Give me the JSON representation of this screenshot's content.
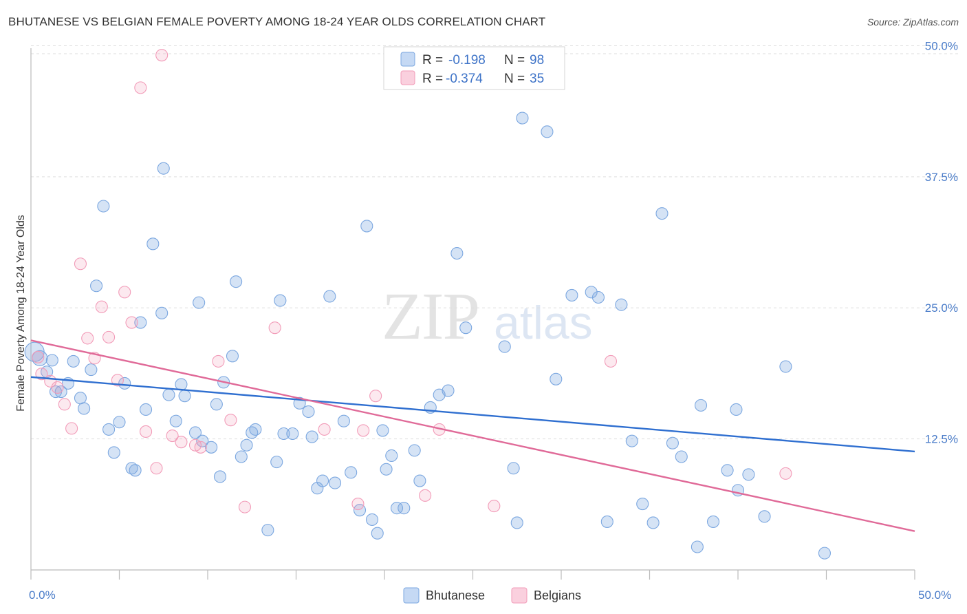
{
  "title": "BHUTANESE VS BELGIAN FEMALE POVERTY AMONG 18-24 YEAR OLDS CORRELATION CHART",
  "source": "Source: ZipAtlas.com",
  "watermark": {
    "zip": "ZIP",
    "atlas": "atlas"
  },
  "legend_box": [
    {
      "r_label": "R =",
      "r_value": "-0.198",
      "n_label": "N =",
      "n_value": "98"
    },
    {
      "r_label": "R =",
      "r_value": "-0.374",
      "n_label": "N =",
      "n_value": "35"
    }
  ],
  "bottom_legend": [
    "Bhutanese",
    "Belgians"
  ],
  "chart_data": {
    "type": "scatter",
    "title": "BHUTANESE VS BELGIAN FEMALE POVERTY AMONG 18-24 YEAR OLDS CORRELATION CHART",
    "xlabel": "",
    "ylabel": "Female Poverty Among 18-24 Year Olds",
    "xlim": [
      0,
      50
    ],
    "ylim": [
      0,
      52
    ],
    "x_tick_labels": [
      "0.0%",
      "50.0%"
    ],
    "y_ticks": [
      12.5,
      25.0,
      37.5,
      50.0
    ],
    "y_tick_labels": [
      "12.5%",
      "25.0%",
      "37.5%",
      "50.0%"
    ],
    "grid": true,
    "legend_position": "top-center",
    "colors": {
      "Bhutanese": "#7ba7e0",
      "Belgians": "#f29bb8",
      "Bhutanese_line": "#2f6fd0",
      "Belgians_line": "#e06a98"
    },
    "series": [
      {
        "name": "Bhutanese",
        "r": -0.198,
        "n": 98,
        "trend": {
          "x": [
            0,
            50
          ],
          "y": [
            18.4,
            11.3
          ]
        },
        "points": [
          [
            0.2,
            20.8
          ],
          [
            0.5,
            20.2
          ],
          [
            0.9,
            18.9
          ],
          [
            1.2,
            20.0
          ],
          [
            1.4,
            17.0
          ],
          [
            1.7,
            17.0
          ],
          [
            2.1,
            17.8
          ],
          [
            2.4,
            19.9
          ],
          [
            2.8,
            16.4
          ],
          [
            3.0,
            15.4
          ],
          [
            3.4,
            19.1
          ],
          [
            3.7,
            27.1
          ],
          [
            4.1,
            34.7
          ],
          [
            4.4,
            13.4
          ],
          [
            4.7,
            11.2
          ],
          [
            5.0,
            14.1
          ],
          [
            5.3,
            17.8
          ],
          [
            5.7,
            9.7
          ],
          [
            5.9,
            9.5
          ],
          [
            6.2,
            23.6
          ],
          [
            6.5,
            15.3
          ],
          [
            6.9,
            31.1
          ],
          [
            7.4,
            24.5
          ],
          [
            7.5,
            38.3
          ],
          [
            7.8,
            16.7
          ],
          [
            8.2,
            14.2
          ],
          [
            8.5,
            17.7
          ],
          [
            8.7,
            16.6
          ],
          [
            9.3,
            13.1
          ],
          [
            9.5,
            25.5
          ],
          [
            9.7,
            12.3
          ],
          [
            10.2,
            11.7
          ],
          [
            10.5,
            15.8
          ],
          [
            10.7,
            8.9
          ],
          [
            10.9,
            17.9
          ],
          [
            11.4,
            20.4
          ],
          [
            11.6,
            27.5
          ],
          [
            11.9,
            10.8
          ],
          [
            12.2,
            11.9
          ],
          [
            12.5,
            13.1
          ],
          [
            12.7,
            13.4
          ],
          [
            13.4,
            3.8
          ],
          [
            13.9,
            10.3
          ],
          [
            14.1,
            25.7
          ],
          [
            14.3,
            13.0
          ],
          [
            14.8,
            13.0
          ],
          [
            15.2,
            15.9
          ],
          [
            15.7,
            15.1
          ],
          [
            15.9,
            12.7
          ],
          [
            16.2,
            7.8
          ],
          [
            16.5,
            8.5
          ],
          [
            16.9,
            26.1
          ],
          [
            17.2,
            8.3
          ],
          [
            17.7,
            14.2
          ],
          [
            18.1,
            9.3
          ],
          [
            18.6,
            5.7
          ],
          [
            19.0,
            32.8
          ],
          [
            19.3,
            4.8
          ],
          [
            19.6,
            3.5
          ],
          [
            19.9,
            13.3
          ],
          [
            20.1,
            9.6
          ],
          [
            20.4,
            10.9
          ],
          [
            20.7,
            5.9
          ],
          [
            21.1,
            5.9
          ],
          [
            21.7,
            11.4
          ],
          [
            22.0,
            8.5
          ],
          [
            22.6,
            15.5
          ],
          [
            23.1,
            16.7
          ],
          [
            23.6,
            17.1
          ],
          [
            24.1,
            30.2
          ],
          [
            24.6,
            23.1
          ],
          [
            26.8,
            21.3
          ],
          [
            27.3,
            9.7
          ],
          [
            27.5,
            4.5
          ],
          [
            27.8,
            43.1
          ],
          [
            29.2,
            41.8
          ],
          [
            29.7,
            18.2
          ],
          [
            30.6,
            26.2
          ],
          [
            31.7,
            26.5
          ],
          [
            32.1,
            26.0
          ],
          [
            32.6,
            4.6
          ],
          [
            33.4,
            25.3
          ],
          [
            34.0,
            12.3
          ],
          [
            34.6,
            6.3
          ],
          [
            35.2,
            4.5
          ],
          [
            35.7,
            34.0
          ],
          [
            36.3,
            12.1
          ],
          [
            36.8,
            10.8
          ],
          [
            37.7,
            2.2
          ],
          [
            37.9,
            15.7
          ],
          [
            38.6,
            4.6
          ],
          [
            39.4,
            9.5
          ],
          [
            39.9,
            15.3
          ],
          [
            40.0,
            7.6
          ],
          [
            40.6,
            9.1
          ],
          [
            41.5,
            5.1
          ],
          [
            42.7,
            19.4
          ],
          [
            44.9,
            1.6
          ]
        ]
      },
      {
        "name": "Belgians",
        "r": -0.374,
        "n": 35,
        "trend": {
          "x": [
            0,
            50
          ],
          "y": [
            21.9,
            3.7
          ]
        },
        "points": [
          [
            0.4,
            20.3
          ],
          [
            0.6,
            18.7
          ],
          [
            1.1,
            18.0
          ],
          [
            1.5,
            17.4
          ],
          [
            1.9,
            15.8
          ],
          [
            2.3,
            13.5
          ],
          [
            2.8,
            29.2
          ],
          [
            3.2,
            22.1
          ],
          [
            3.6,
            20.2
          ],
          [
            4.0,
            25.1
          ],
          [
            4.4,
            22.2
          ],
          [
            4.9,
            18.1
          ],
          [
            5.3,
            26.5
          ],
          [
            5.7,
            23.6
          ],
          [
            6.2,
            46.0
          ],
          [
            6.5,
            13.2
          ],
          [
            7.1,
            9.7
          ],
          [
            7.4,
            49.1
          ],
          [
            8.0,
            12.8
          ],
          [
            8.5,
            12.2
          ],
          [
            9.3,
            11.9
          ],
          [
            9.6,
            11.7
          ],
          [
            10.6,
            19.9
          ],
          [
            11.3,
            14.3
          ],
          [
            12.1,
            6.0
          ],
          [
            13.8,
            23.1
          ],
          [
            16.6,
            13.4
          ],
          [
            18.5,
            6.3
          ],
          [
            18.8,
            13.3
          ],
          [
            19.5,
            16.6
          ],
          [
            22.3,
            7.1
          ],
          [
            23.1,
            13.4
          ],
          [
            26.2,
            6.1
          ],
          [
            32.8,
            19.9
          ],
          [
            42.7,
            9.2
          ]
        ]
      }
    ]
  }
}
